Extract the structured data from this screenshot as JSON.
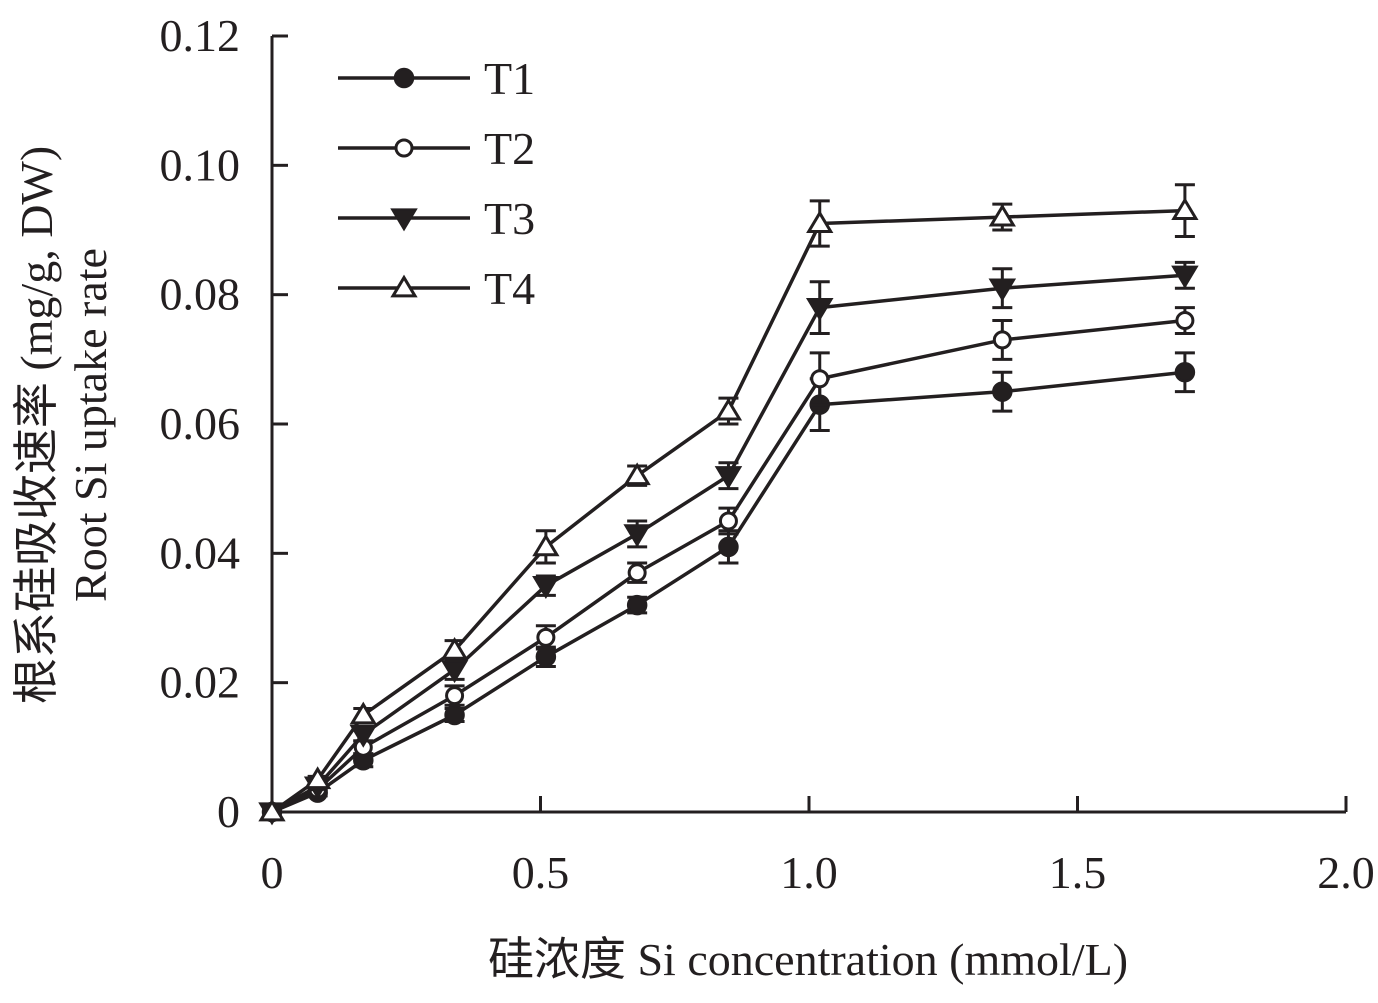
{
  "chart_data": {
    "type": "line",
    "xlabel": "硅浓度 Si concentration (mmol/L)",
    "ylabel_line1": "根系硅吸收速率 (mg/g, DW)",
    "ylabel_line2": "Root Si uptake rate",
    "xlim": [
      0,
      2.0
    ],
    "ylim": [
      0,
      0.12
    ],
    "x_ticks": [
      "0",
      "0.5",
      "1.0",
      "1.5",
      "2.0"
    ],
    "y_ticks": [
      "0",
      "0.02",
      "0.04",
      "0.06",
      "0.08",
      "0.10",
      "0.12"
    ],
    "legend_position": "top-left",
    "grid": false,
    "x": [
      0,
      0.085,
      0.17,
      0.34,
      0.51,
      0.68,
      0.85,
      1.02,
      1.36,
      1.7
    ],
    "series": [
      {
        "name": "T1",
        "marker": "filled-circle",
        "values": [
          0,
          0.003,
          0.008,
          0.015,
          0.024,
          0.032,
          0.041,
          0.063,
          0.065,
          0.068
        ],
        "errors": [
          0,
          0.0005,
          0.001,
          0.001,
          0.0015,
          0.0012,
          0.0025,
          0.004,
          0.003,
          0.003
        ]
      },
      {
        "name": "T2",
        "marker": "open-circle",
        "values": [
          0,
          0.0035,
          0.01,
          0.018,
          0.027,
          0.037,
          0.045,
          0.067,
          0.073,
          0.076
        ],
        "errors": [
          0,
          0.0005,
          0.001,
          0.0015,
          0.0018,
          0.0015,
          0.002,
          0.004,
          0.003,
          0.002
        ]
      },
      {
        "name": "T3",
        "marker": "filled-triangle-down",
        "values": [
          0,
          0.004,
          0.012,
          0.022,
          0.035,
          0.043,
          0.052,
          0.078,
          0.081,
          0.083
        ],
        "errors": [
          0,
          0.0005,
          0.001,
          0.0015,
          0.0015,
          0.002,
          0.002,
          0.004,
          0.003,
          0.002
        ]
      },
      {
        "name": "T4",
        "marker": "open-triangle-up",
        "values": [
          0,
          0.005,
          0.015,
          0.025,
          0.041,
          0.052,
          0.062,
          0.091,
          0.092,
          0.093
        ],
        "errors": [
          0,
          0.0005,
          0.001,
          0.0015,
          0.0025,
          0.0015,
          0.002,
          0.0035,
          0.002,
          0.004
        ]
      }
    ]
  }
}
